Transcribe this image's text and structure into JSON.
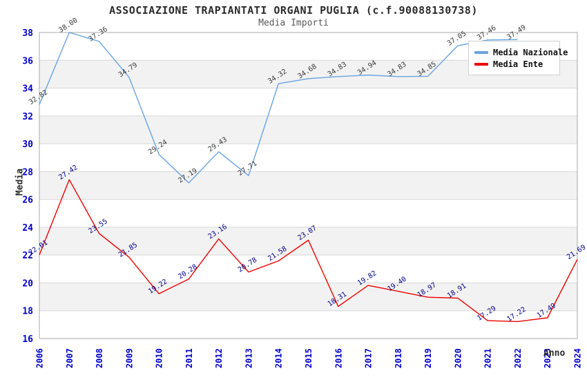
{
  "header": {
    "title": "ASSOCIAZIONE TRAPIANTATI ORGANI PUGLIA (c.f.90088130738)",
    "subtitle": "Media Importi"
  },
  "axes": {
    "y_label": "Media",
    "x_label": "Anno"
  },
  "legend": {
    "position": "top-right"
  },
  "chart_data": {
    "type": "line",
    "title": "ASSOCIAZIONE TRAPIANTATI ORGANI PUGLIA (c.f.90088130738)",
    "subtitle": "Media Importi",
    "xlabel": "Anno",
    "ylabel": "Media",
    "categories": [
      "2006",
      "2007",
      "2008",
      "2009",
      "2010",
      "2011",
      "2012",
      "2013",
      "2014",
      "2015",
      "2016",
      "2017",
      "2018",
      "2019",
      "2020",
      "2021",
      "2022",
      "2023",
      "2024"
    ],
    "series": [
      {
        "name": "Media Nazionale",
        "color": "#67a3e2",
        "label_color": "#3a3a3a",
        "values": [
          32.82,
          38.0,
          37.36,
          34.79,
          29.24,
          27.19,
          29.43,
          27.71,
          34.32,
          34.68,
          34.83,
          34.94,
          34.83,
          34.85,
          37.05,
          37.46,
          37.49,
          null,
          null
        ]
      },
      {
        "name": "Media Ente",
        "color": "#ee0000",
        "label_color": "#00008b",
        "values": [
          22.01,
          27.42,
          23.55,
          21.85,
          19.22,
          20.28,
          23.16,
          20.78,
          21.58,
          23.07,
          18.31,
          19.82,
          19.4,
          18.97,
          18.91,
          17.29,
          17.22,
          17.49,
          21.69
        ]
      }
    ],
    "ylim": [
      16,
      38
    ],
    "ytick_step": 2,
    "grid": true,
    "legend_position": "top-right",
    "tick_color": "#0000cd",
    "band_colors": [
      "#ffffff",
      "#f2f2f2"
    ],
    "gridline_color": "#d8d8d8",
    "border_color": "#a8a8a8"
  }
}
